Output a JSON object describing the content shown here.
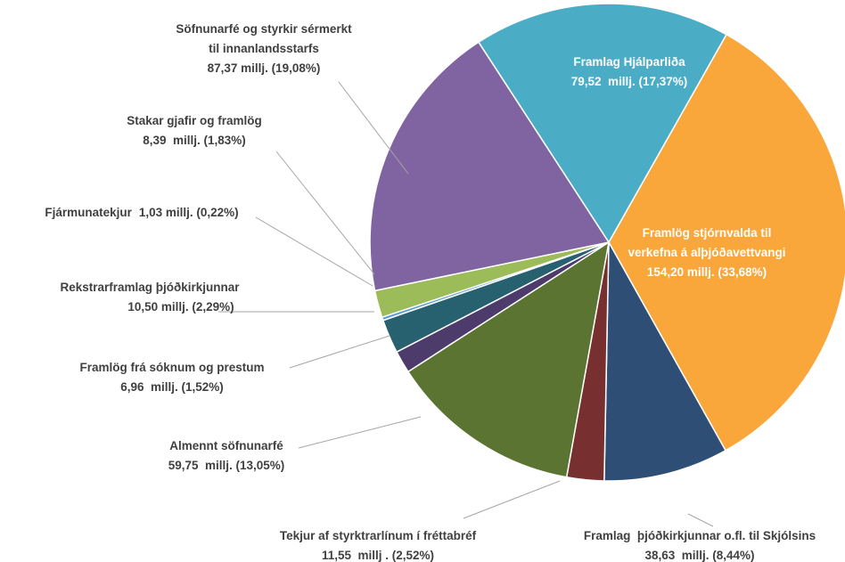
{
  "chart_data": {
    "type": "pie",
    "categories": [
      [
        "Framlög stjórnvalda til",
        "verkefna á alþjóðavettvangi"
      ],
      [
        "Framlag  þjóðkirkjunnar o.fl. til Skjólsins"
      ],
      [
        "Tekjur af styrktrarlínum í fréttabréf"
      ],
      [
        "Almennt söfnunarfé"
      ],
      [
        "Framlög frá sóknum og prestum"
      ],
      [
        "Rekstrarframlag þjóðkirkjunnar"
      ],
      [
        "Fjármunatekjur"
      ],
      [
        "Stakar gjafir og framlög"
      ],
      [
        "Söfnunarfé og styrkir sérmerkt",
        "til innanlandsstarfs"
      ],
      [
        "Framlag Hjálparliða"
      ]
    ],
    "values": [
      154.2,
      38.63,
      11.55,
      59.75,
      6.96,
      10.5,
      1.03,
      8.39,
      87.37,
      79.52
    ],
    "value_labels": [
      "154,20 millj. (33,68%)",
      "38,63  millj. (8,44%)",
      "11,55  millj . (2,52%)",
      "59,75  millj. (13,05%)",
      "6,96  millj. (1,52%)",
      "10,50 millj. (2,29%)",
      "1,03 millj. (0,22%)",
      "8,39  millj. (1,83%)",
      "87,37 millj. (19,08%)",
      "79,52  millj. (17,37%)"
    ],
    "colors": [
      "#f9a73b",
      "#2f4e75",
      "#772f2f",
      "#5b7432",
      "#4d3b6c",
      "#27606f",
      "#5b9bd5",
      "#9cbb59",
      "#8064a2",
      "#4bacc6"
    ]
  }
}
